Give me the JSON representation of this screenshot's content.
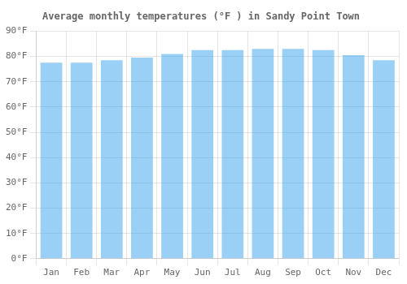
{
  "chart_data": {
    "type": "bar",
    "title": "Average monthly temperatures (°F ) in Sandy Point Town",
    "categories": [
      "Jan",
      "Feb",
      "Mar",
      "Apr",
      "May",
      "Jun",
      "Jul",
      "Aug",
      "Sep",
      "Oct",
      "Nov",
      "Dec"
    ],
    "values": [
      77.5,
      77.5,
      78.5,
      79.5,
      81.0,
      82.5,
      82.5,
      83.0,
      83.0,
      82.5,
      80.5,
      78.5
    ],
    "ylim": [
      0,
      90
    ],
    "yticks": [
      {
        "value": 0,
        "label": "0°F"
      },
      {
        "value": 10,
        "label": "10°F"
      },
      {
        "value": 20,
        "label": "20°F"
      },
      {
        "value": 30,
        "label": "30°F"
      },
      {
        "value": 40,
        "label": "40°F"
      },
      {
        "value": 50,
        "label": "50°F"
      },
      {
        "value": 60,
        "label": "60°F"
      },
      {
        "value": 70,
        "label": "70°F"
      },
      {
        "value": 80,
        "label": "80°F"
      },
      {
        "value": 90,
        "label": "90°F"
      }
    ],
    "grid": true
  }
}
